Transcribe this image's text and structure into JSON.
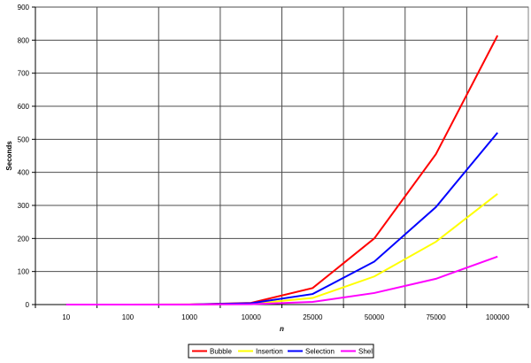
{
  "chart_data": {
    "type": "line",
    "title": "",
    "xlabel": "n",
    "ylabel": "Seconds",
    "categories": [
      "10",
      "100",
      "1000",
      "10000",
      "25000",
      "50000",
      "75000",
      "100000"
    ],
    "ylim": [
      0,
      900
    ],
    "yticks": [
      0,
      100,
      200,
      300,
      400,
      500,
      600,
      700,
      800,
      900
    ],
    "grid": true,
    "legend_position": "bottom",
    "series": [
      {
        "name": "Bubble",
        "color": "#ff0000",
        "values": [
          0,
          0,
          0.5,
          5,
          50,
          200,
          455,
          814
        ]
      },
      {
        "name": "Insertion",
        "color": "#ffff00",
        "values": [
          0,
          0,
          0,
          2,
          20,
          85,
          190,
          335
        ]
      },
      {
        "name": "Selection",
        "color": "#0000ff",
        "values": [
          0,
          0,
          0,
          4,
          32,
          130,
          295,
          520
        ]
      },
      {
        "name": "Shell",
        "color": "#ff00ff",
        "values": [
          0,
          0,
          0,
          1,
          8,
          35,
          78,
          145
        ]
      }
    ]
  }
}
